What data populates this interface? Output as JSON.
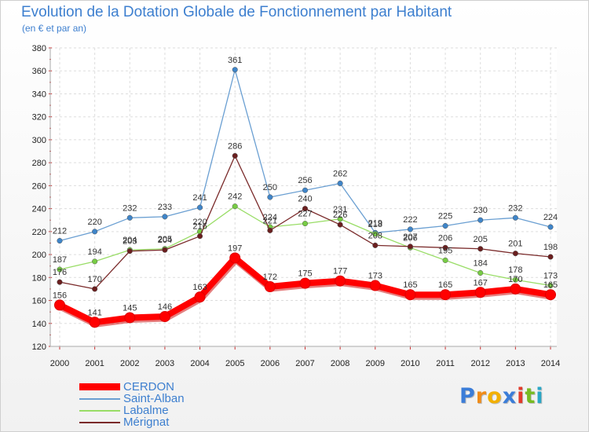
{
  "chart_data": {
    "type": "line",
    "title": "Evolution de la Dotation Globale de Fonctionnement par Habitant",
    "subtitle": "(en € et par an)",
    "xlabel": "",
    "ylabel": "",
    "x": [
      "2000",
      "2001",
      "2002",
      "2003",
      "2004",
      "2005",
      "2006",
      "2007",
      "2008",
      "2009",
      "2010",
      "2011",
      "2012",
      "2013",
      "2014"
    ],
    "ylim": [
      120,
      380
    ],
    "yticks": [
      "120",
      "140",
      "160",
      "180",
      "200",
      "220",
      "240",
      "260",
      "280",
      "300",
      "320",
      "340",
      "360",
      "380"
    ],
    "grid": true,
    "legend_position": "bottom-left",
    "series": [
      {
        "name": "Saint-Alban",
        "color": "#6a9fd2",
        "marker_color": "#3f85c9",
        "values": [
          212,
          220,
          232,
          233,
          241,
          361,
          250,
          256,
          262,
          219,
          222,
          225,
          230,
          232,
          224
        ],
        "labels": [
          "212",
          "220",
          "232",
          "233",
          "241",
          "361",
          "250",
          "256",
          "262",
          "219",
          "222",
          "225",
          "230",
          "232",
          "224"
        ]
      },
      {
        "name": "Labalme",
        "color": "#99dd66",
        "marker_color": "#77cc44",
        "values": [
          187,
          194,
          204,
          205,
          220,
          242,
          224,
          227,
          231,
          218,
          206,
          195,
          184,
          178,
          173
        ],
        "labels": [
          "187",
          "194",
          "204",
          "205",
          "220",
          "242",
          "224",
          "227",
          "231",
          "218",
          "206",
          "195",
          "184",
          "178",
          "173"
        ]
      },
      {
        "name": "Mérignat",
        "color": "#7a2a2a",
        "marker_color": "#6b1f1f",
        "values": [
          176,
          170,
          203,
          204,
          216,
          286,
          221,
          240,
          226,
          208,
          207,
          206,
          205,
          201,
          198
        ],
        "labels": [
          "176",
          "170",
          "203",
          "204",
          "216",
          "286",
          "221",
          "240",
          "226",
          "208",
          "207",
          "206",
          "205",
          "201",
          "198"
        ]
      },
      {
        "name": "CERDON",
        "color": "#ff0000",
        "marker_color": "#ff0000",
        "values": [
          156,
          141,
          145,
          146,
          163,
          197,
          172,
          175,
          177,
          173,
          165,
          165,
          167,
          170,
          165
        ],
        "labels": [
          "156",
          "141",
          "145",
          "146",
          "163",
          "197",
          "172",
          "175",
          "177",
          "173",
          "165",
          "165",
          "167",
          "170",
          "165"
        ]
      }
    ],
    "legend": [
      {
        "name": "CERDON",
        "color": "#ff0000",
        "thick": true
      },
      {
        "name": "Saint-Alban",
        "color": "#6a9fd2",
        "thick": false
      },
      {
        "name": "Labalme",
        "color": "#99dd66",
        "thick": false
      },
      {
        "name": "Mérignat",
        "color": "#7a2a2a",
        "thick": false
      }
    ]
  },
  "logo": {
    "letters": [
      "P",
      "r",
      "o",
      "x",
      "i",
      "t",
      "i"
    ],
    "colors": [
      "#3b7dd8",
      "#f08c1a",
      "#f2b000",
      "#3b7dd8",
      "#e23b2b",
      "#77bb22",
      "#2aa7c6"
    ]
  }
}
